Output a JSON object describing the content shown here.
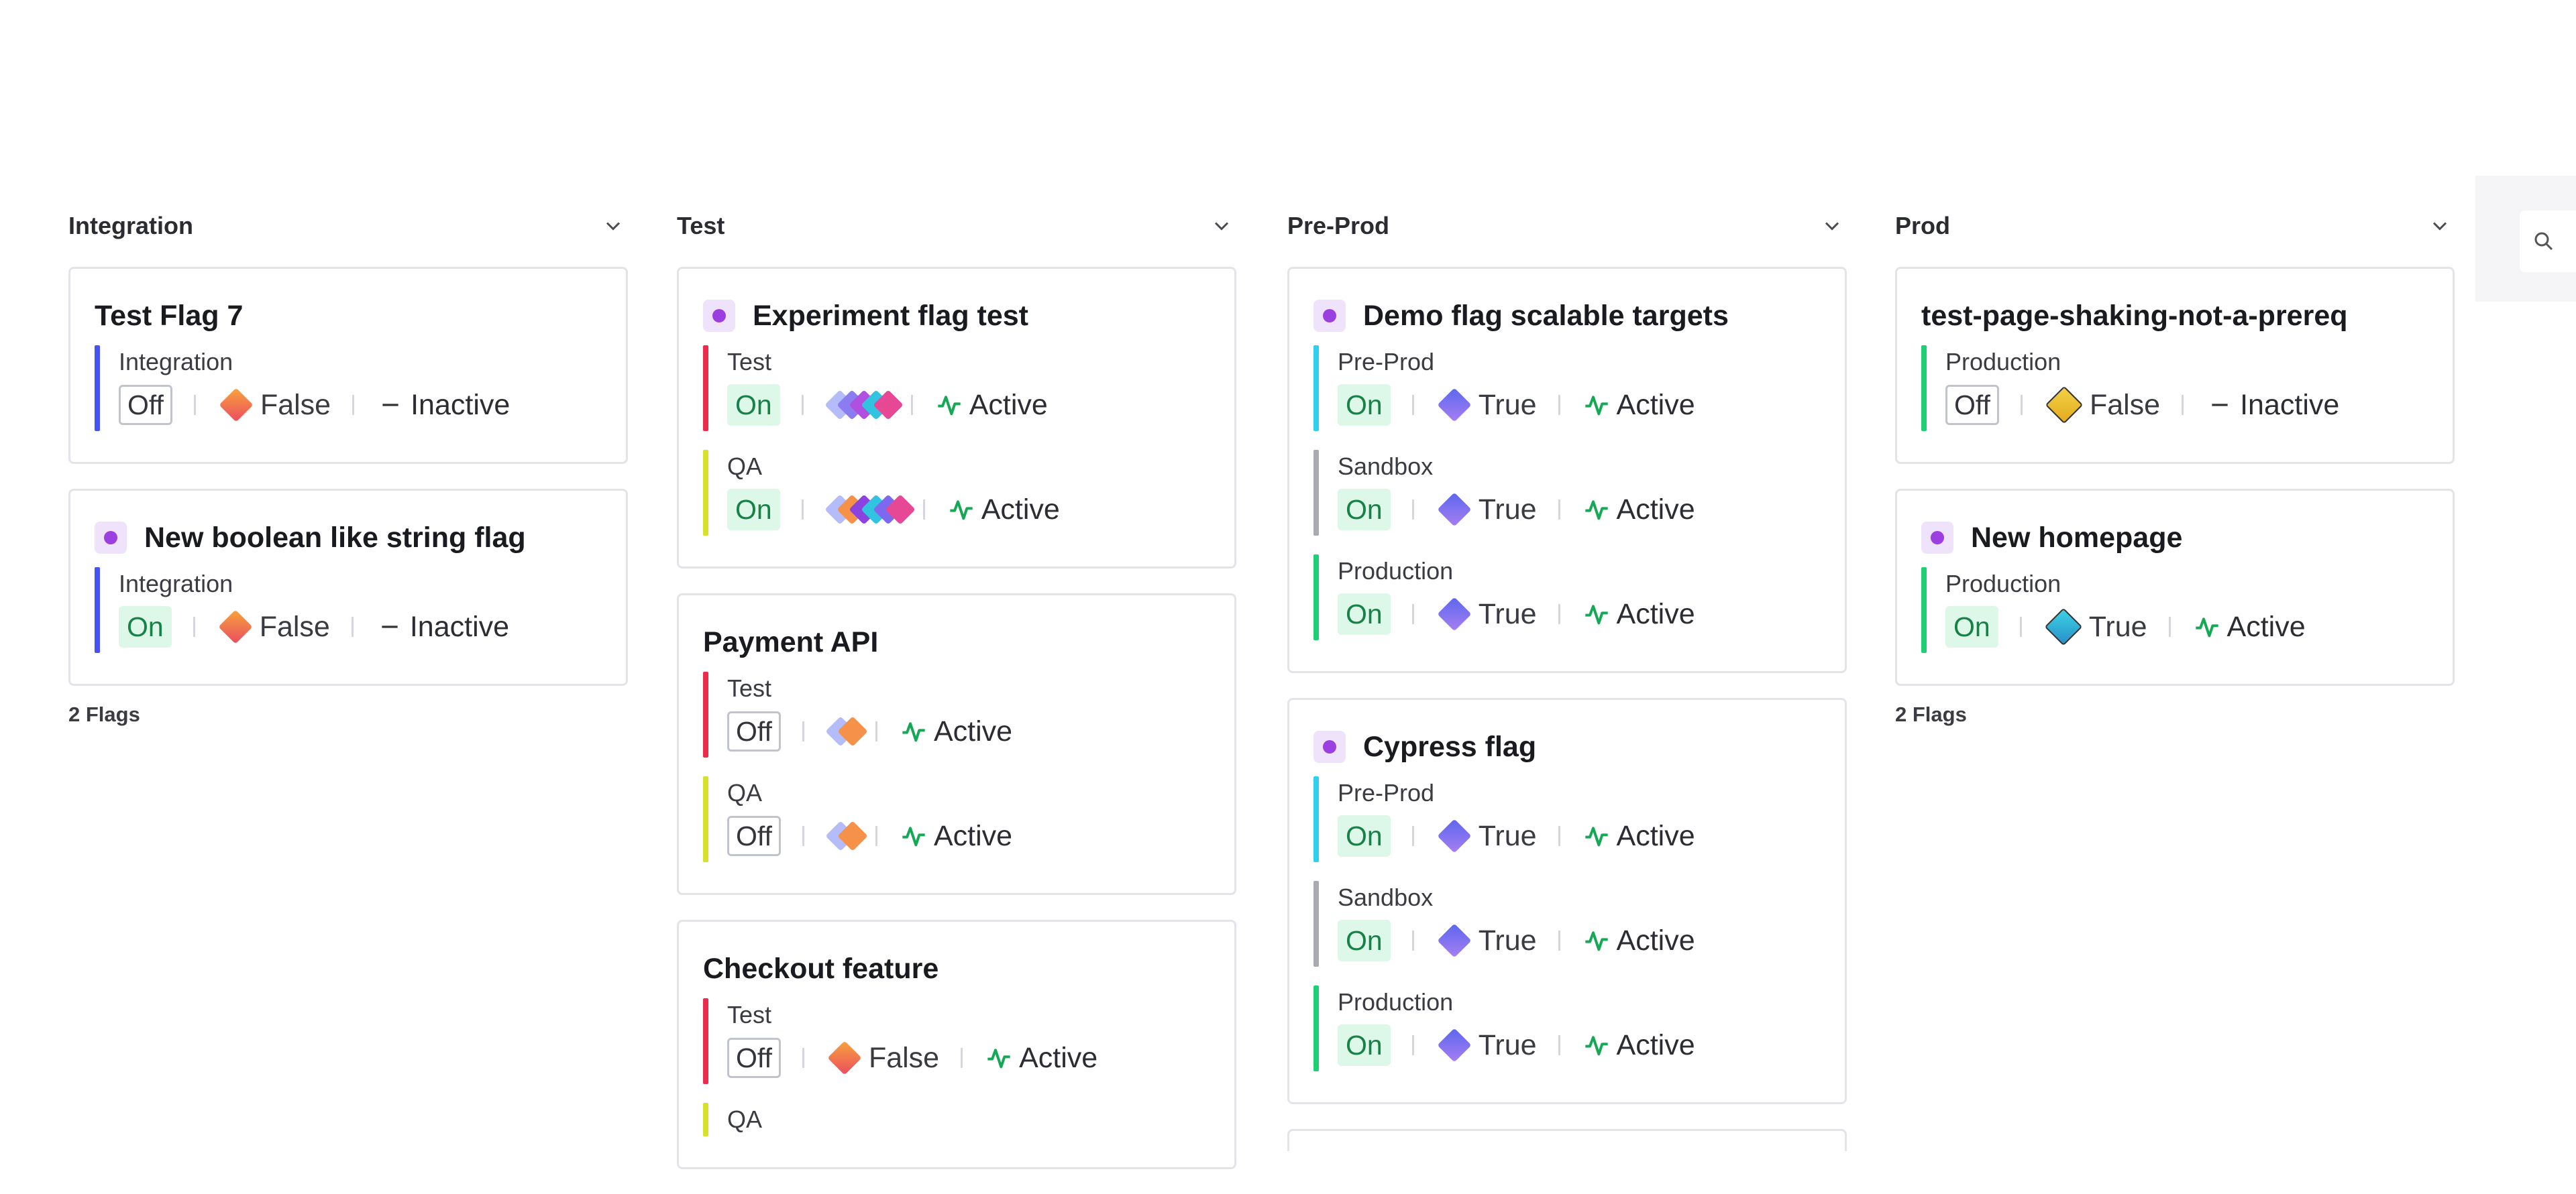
{
  "columns": [
    {
      "title": "Integration",
      "count": "2 Flags",
      "cards": [
        {
          "title": "Test Flag 7",
          "has_type_icon": false,
          "envs": [
            {
              "name": "Integration",
              "color": "#4553f5",
              "state": "Off",
              "variation": {
                "color": "orange",
                "label": "False"
              },
              "status": "Inactive"
            }
          ]
        },
        {
          "title": "New boolean like string flag",
          "has_type_icon": true,
          "envs": [
            {
              "name": "Integration",
              "color": "#4553f5",
              "state": "On",
              "variation": {
                "color": "orange",
                "label": "False"
              },
              "status": "Inactive"
            }
          ]
        }
      ]
    },
    {
      "title": "Test",
      "cards": [
        {
          "title": "Experiment flag test",
          "has_type_icon": true,
          "envs": [
            {
              "name": "Test",
              "color": "#ec2c4d",
              "state": "On",
              "variation": {
                "stack": [
                  "#b5bcfa",
                  "#8b7cf1",
                  "#b04fe0",
                  "#30c4e0",
                  "#e64896"
                ]
              },
              "status": "Active"
            },
            {
              "name": "QA",
              "color": "#d5e12a",
              "state": "On",
              "variation": {
                "stack": [
                  "#b5bcfa",
                  "#f6914a",
                  "#8b43df",
                  "#30c4e0",
                  "#7d69ef",
                  "#e64896"
                ]
              },
              "status": "Active"
            }
          ]
        },
        {
          "title": "Payment API",
          "has_type_icon": false,
          "envs": [
            {
              "name": "Test",
              "color": "#ec2c4d",
              "state": "Off",
              "variation": {
                "stack": [
                  "#b5bcfa",
                  "#f6914a"
                ]
              },
              "status": "Active"
            },
            {
              "name": "QA",
              "color": "#d5e12a",
              "state": "Off",
              "variation": {
                "stack": [
                  "#b5bcfa",
                  "#f6914a"
                ]
              },
              "status": "Active"
            }
          ]
        },
        {
          "title": "Checkout feature",
          "has_type_icon": false,
          "envs": [
            {
              "name": "Test",
              "color": "#ec2c4d",
              "state": "Off",
              "variation": {
                "color": "orange",
                "label": "False"
              },
              "status": "Active"
            },
            {
              "name": "QA",
              "color": "#d5e12a",
              "state": "",
              "variation": null,
              "status": ""
            }
          ]
        }
      ]
    },
    {
      "title": "Pre-Prod",
      "cards": [
        {
          "title": "Demo flag scalable targets",
          "has_type_icon": true,
          "envs": [
            {
              "name": "Pre-Prod",
              "color": "#2fd0ee",
              "state": "On",
              "variation": {
                "color": "purple",
                "label": "True"
              },
              "status": "Active"
            },
            {
              "name": "Sandbox",
              "color": "#a9aab2",
              "state": "On",
              "variation": {
                "color": "purple",
                "label": "True"
              },
              "status": "Active"
            },
            {
              "name": "Production",
              "color": "#1fcf73",
              "state": "On",
              "variation": {
                "color": "purple",
                "label": "True"
              },
              "status": "Active"
            }
          ]
        },
        {
          "title": "Cypress flag",
          "has_type_icon": true,
          "envs": [
            {
              "name": "Pre-Prod",
              "color": "#2fd0ee",
              "state": "On",
              "variation": {
                "color": "purple",
                "label": "True"
              },
              "status": "Active"
            },
            {
              "name": "Sandbox",
              "color": "#a9aab2",
              "state": "On",
              "variation": {
                "color": "purple",
                "label": "True"
              },
              "status": "Active"
            },
            {
              "name": "Production",
              "color": "#1fcf73",
              "state": "On",
              "variation": {
                "color": "purple",
                "label": "True"
              },
              "status": "Active"
            }
          ]
        }
      ]
    },
    {
      "title": "Prod",
      "count": "2 Flags",
      "cards": [
        {
          "title": "test-page-shaking-not-a-prereq",
          "has_type_icon": false,
          "envs": [
            {
              "name": "Production",
              "color": "#1fcf73",
              "state": "Off",
              "variation": {
                "color": "yellow",
                "label": "False"
              },
              "status": "Inactive"
            }
          ]
        },
        {
          "title": "New homepage",
          "has_type_icon": true,
          "envs": [
            {
              "name": "Production",
              "color": "#1fcf73",
              "state": "On",
              "variation": {
                "color": "teal",
                "label": "True"
              },
              "status": "Active"
            }
          ]
        }
      ]
    }
  ]
}
